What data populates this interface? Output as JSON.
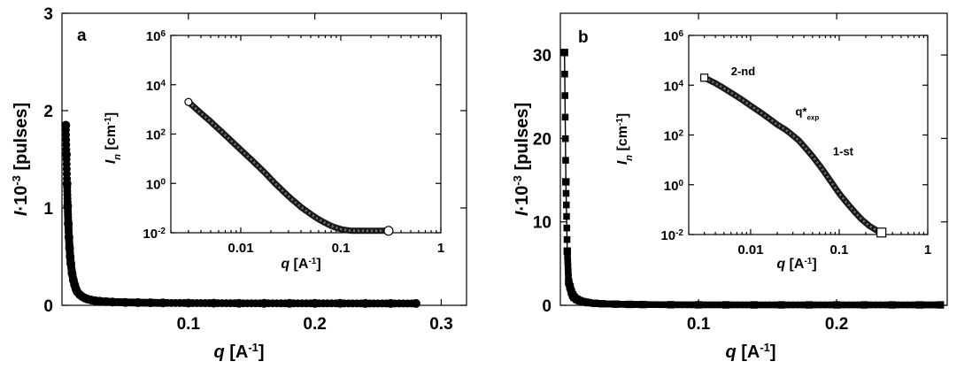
{
  "chart_data": [
    {
      "panel_label": "a",
      "type": "scatter",
      "marker": "filled-circle",
      "xlabel": "q [A-1]",
      "ylabel": "I·10-3 [pulses]",
      "xlim": [
        0,
        0.32
      ],
      "ylim": [
        0,
        3
      ],
      "xticks": [
        {
          "v": 0.1,
          "label": "0.1"
        },
        {
          "v": 0.2,
          "label": "0.2"
        },
        {
          "v": 0.3,
          "label": "0.3"
        }
      ],
      "yticks": [
        {
          "v": 0,
          "label": "0"
        },
        {
          "v": 1,
          "label": "1"
        },
        {
          "v": 2,
          "label": "2"
        },
        {
          "v": 3,
          "label": "3"
        }
      ],
      "series": [
        {
          "x": [
            0.003,
            0.0035,
            0.004,
            0.0045,
            0.005,
            0.0055,
            0.006,
            0.0065,
            0.007,
            0.008,
            0.009,
            0.01,
            0.011,
            0.012,
            0.014,
            0.016,
            0.018,
            0.02,
            0.023,
            0.026,
            0.03,
            0.035,
            0.04,
            0.05,
            0.06,
            0.07,
            0.08,
            0.1,
            0.12,
            0.14,
            0.16,
            0.18,
            0.2,
            0.22,
            0.24,
            0.26,
            0.28
          ],
          "y": [
            1.85,
            1.55,
            1.25,
            1.02,
            0.84,
            0.7,
            0.59,
            0.5,
            0.43,
            0.33,
            0.26,
            0.21,
            0.17,
            0.14,
            0.11,
            0.09,
            0.075,
            0.065,
            0.055,
            0.048,
            0.042,
            0.037,
            0.034,
            0.03,
            0.028,
            0.026,
            0.025,
            0.023,
            0.022,
            0.021,
            0.021,
            0.02,
            0.02,
            0.02,
            0.019,
            0.019,
            0.019
          ]
        }
      ],
      "inset": {
        "type": "scatter",
        "marker": "open-circle",
        "xscale": "log",
        "yscale": "log",
        "xlabel": "q [A-1]",
        "ylabel": "In [cm-1]",
        "xlim": [
          0.002,
          1
        ],
        "ylim": [
          0.01,
          1000000
        ],
        "xticks": [
          {
            "v": 0.01,
            "label": "0.01"
          },
          {
            "v": 0.1,
            "label": "0.1"
          },
          {
            "v": 1,
            "label": "1"
          }
        ],
        "yticks": [
          {
            "v": 0.01,
            "base": "10",
            "exp": "-2"
          },
          {
            "v": 1,
            "base": "10",
            "exp": "0"
          },
          {
            "v": 100,
            "base": "10",
            "exp": "2"
          },
          {
            "v": 10000,
            "base": "10",
            "exp": "4"
          },
          {
            "v": 1000000,
            "base": "10",
            "exp": "6"
          }
        ],
        "series": [
          {
            "x": [
              0.003,
              0.004,
              0.005,
              0.007,
              0.01,
              0.013,
              0.017,
              0.022,
              0.03,
              0.04,
              0.05,
              0.06,
              0.07,
              0.08,
              0.09,
              0.1,
              0.11,
              0.13,
              0.16,
              0.2,
              0.25,
              0.3
            ],
            "y": [
              2000,
              700,
              320,
              90,
              23,
              8.5,
              3.0,
              1.0,
              0.3,
              0.11,
              0.057,
              0.035,
              0.025,
              0.019,
              0.016,
              0.014,
              0.013,
              0.012,
              0.012,
              0.012,
              0.012,
              0.012
            ]
          }
        ]
      }
    },
    {
      "panel_label": "b",
      "type": "scatter",
      "marker": "filled-square",
      "xlabel": "q [A-1]",
      "ylabel": "I·10-3 [pulses]",
      "xlim": [
        0,
        0.28
      ],
      "ylim": [
        0,
        35
      ],
      "xticks": [
        {
          "v": 0.1,
          "label": "0.1"
        },
        {
          "v": 0.2,
          "label": "0.2"
        }
      ],
      "yticks": [
        {
          "v": 0,
          "label": "0"
        },
        {
          "v": 10,
          "label": "10"
        },
        {
          "v": 20,
          "label": "20"
        },
        {
          "v": 30,
          "label": "30"
        }
      ],
      "series": [
        {
          "x": [
            0.003,
            0.004,
            0.005,
            0.006,
            0.007,
            0.008,
            0.009,
            0.01,
            0.012,
            0.014,
            0.016,
            0.018,
            0.02,
            0.025,
            0.03,
            0.04,
            0.05,
            0.06,
            0.08,
            0.1,
            0.12,
            0.14,
            0.16,
            0.18,
            0.2,
            0.22,
            0.24,
            0.26,
            0.275
          ],
          "y": [
            30.3,
            14.8,
            6.5,
            2.8,
            2.2,
            1.6,
            1.2,
            0.95,
            0.7,
            0.55,
            0.45,
            0.38,
            0.32,
            0.24,
            0.19,
            0.14,
            0.11,
            0.09,
            0.07,
            0.06,
            0.055,
            0.05,
            0.05,
            0.05,
            0.05,
            0.05,
            0.05,
            0.05,
            0.05
          ]
        }
      ],
      "inset": {
        "type": "scatter",
        "marker": "open-square",
        "xscale": "log",
        "yscale": "log",
        "xlabel": "q [A-1]",
        "ylabel": "In [cm-1]",
        "xlim": [
          0.002,
          1
        ],
        "ylim": [
          0.01,
          1000000
        ],
        "xticks": [
          {
            "v": 0.01,
            "label": "0.01"
          },
          {
            "v": 0.1,
            "label": "0.1"
          },
          {
            "v": 1,
            "label": "1"
          }
        ],
        "yticks": [
          {
            "v": 0.01,
            "base": "10",
            "exp": "-2"
          },
          {
            "v": 1,
            "base": "10",
            "exp": "0"
          },
          {
            "v": 100,
            "base": "10",
            "exp": "2"
          },
          {
            "v": 10000,
            "base": "10",
            "exp": "4"
          },
          {
            "v": 1000000,
            "base": "10",
            "exp": "6"
          }
        ],
        "series": [
          {
            "x": [
              0.003,
              0.004,
              0.005,
              0.006,
              0.008,
              0.01,
              0.013,
              0.016,
              0.02,
              0.025,
              0.03,
              0.035,
              0.04,
              0.05,
              0.06,
              0.07,
              0.08,
              0.1,
              0.12,
              0.15,
              0.18,
              0.22,
              0.27,
              0.3
            ],
            "y": [
              20000,
              12000,
              7500,
              5000,
              2600,
              1500,
              800,
              470,
              260,
              160,
              95,
              60,
              35,
              14,
              6,
              2.8,
              1.4,
              0.45,
              0.2,
              0.08,
              0.04,
              0.022,
              0.014,
              0.012
            ]
          }
        ],
        "annotations": [
          {
            "text": "2-nd",
            "at": [
              0.006,
              25000
            ]
          },
          {
            "text": "q*",
            "sub": "exp",
            "at": [
              0.032,
              600
            ]
          },
          {
            "text": "1-st",
            "at": [
              0.085,
              15
            ]
          }
        ]
      }
    }
  ]
}
